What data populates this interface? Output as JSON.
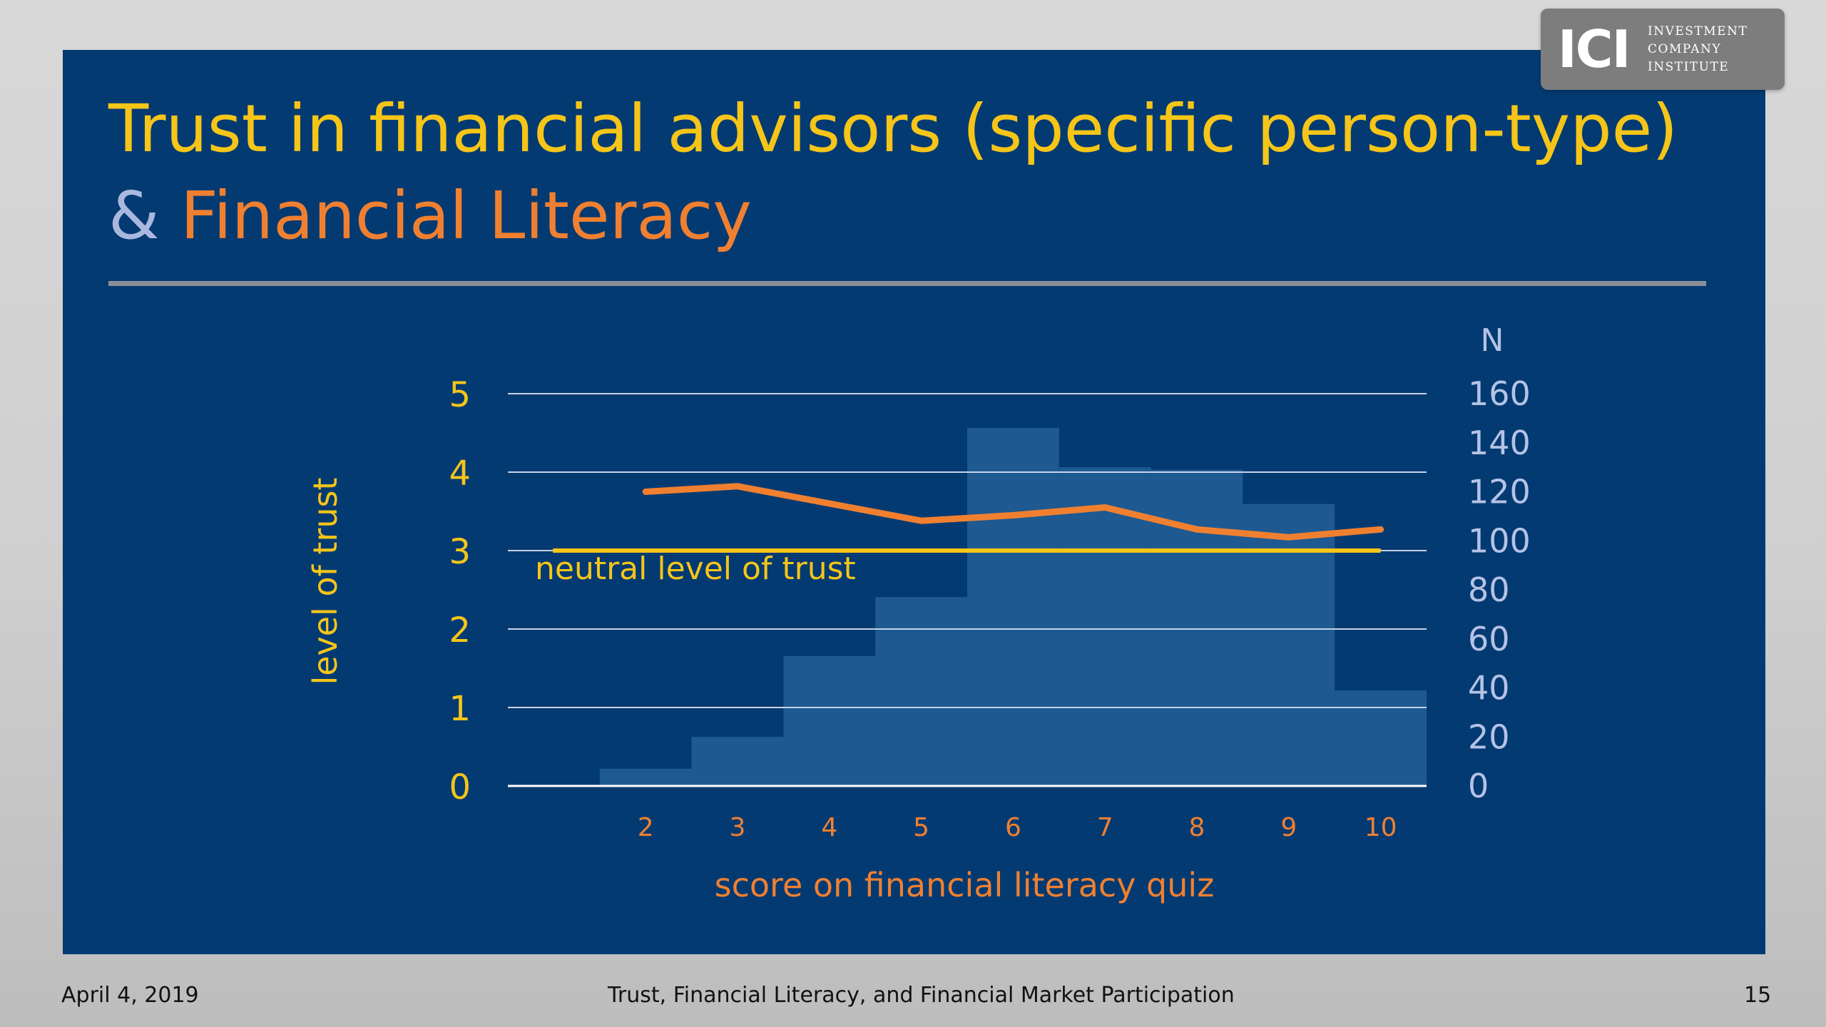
{
  "title": {
    "line1": "Trust in financial advisors (specific person-type)",
    "line2_amp": "&",
    "line2_rest": "Financial Literacy"
  },
  "logo": {
    "mark": "ICI",
    "line1": "INVESTMENT",
    "line2": "COMPANY",
    "line3": "INSTITUTE"
  },
  "footer": {
    "date": "April 4, 2019",
    "center": "Trust, Financial Literacy, and Financial Market Participation",
    "page": "15"
  },
  "colors": {
    "slide_bg": "#043a72",
    "title_yellow": "#f5c518",
    "title_orange": "#f08030",
    "amp": "#aab8e0",
    "bars": "#1e5a91",
    "trust_line": "#f08030",
    "neutral_line": "#f5c518",
    "right_axis": "#b4c3e6",
    "gridline": "#c8d2e6"
  },
  "chart_data": {
    "type": "bar",
    "xlabel": "score on financial literacy quiz",
    "ylabel": "level of trust",
    "y2label": "N",
    "categories": [
      "2",
      "3",
      "4",
      "5",
      "6",
      "7",
      "8",
      "9",
      "10"
    ],
    "yticks": [
      "0",
      "1",
      "2",
      "3",
      "4",
      "5"
    ],
    "y2ticks": [
      "0",
      "20",
      "40",
      "60",
      "80",
      "100",
      "120",
      "140",
      "160"
    ],
    "ylim": [
      0,
      5
    ],
    "y2lim": [
      0,
      160
    ],
    "grid": true,
    "series": [
      {
        "type": "bar",
        "axis": "right",
        "values": [
          7,
          20,
          53,
          77,
          146,
          130,
          129,
          115,
          39
        ]
      },
      {
        "type": "line",
        "axis": "left",
        "values": [
          3.75,
          3.82,
          3.6,
          3.38,
          3.45,
          3.55,
          3.27,
          3.17,
          3.27
        ]
      },
      {
        "type": "line",
        "axis": "left",
        "name": "neutral level of trust",
        "values": [
          3,
          3,
          3,
          3,
          3,
          3,
          3,
          3,
          3
        ]
      }
    ]
  }
}
